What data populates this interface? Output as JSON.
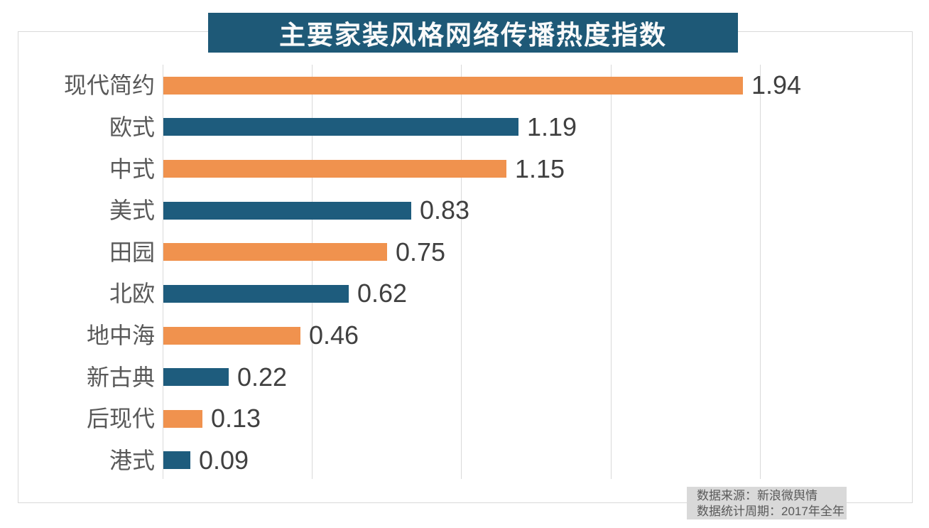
{
  "title": "主要家装风格网络传播热度指数",
  "source": {
    "line1": "数据来源：新浪微舆情",
    "line2": "数据统计周期：2017年全年"
  },
  "colors": {
    "title_bg": "#1E5977",
    "bar_orange": "#F0924E",
    "bar_teal": "#1E5C7D",
    "gridline": "#D9D9D9",
    "frame_border": "#D9D9D9",
    "category_label": "#595959",
    "value_label": "#404040",
    "source_bg": "#D9D9D9",
    "source_text": "#595959"
  },
  "chart_data": {
    "type": "bar",
    "orientation": "horizontal",
    "title": "主要家装风格网络传播热度指数",
    "categories": [
      "现代简约",
      "欧式",
      "中式",
      "美式",
      "田园",
      "北欧",
      "地中海",
      "新古典",
      "后现代",
      "港式"
    ],
    "values": [
      1.94,
      1.19,
      1.15,
      0.83,
      0.75,
      0.62,
      0.46,
      0.22,
      0.13,
      0.09
    ],
    "value_labels": [
      "1.94",
      "1.19",
      "1.15",
      "0.83",
      "0.75",
      "0.62",
      "0.46",
      "0.22",
      "0.13",
      "0.09"
    ],
    "bar_color_pattern": [
      "#F0924E",
      "#1E5C7D"
    ],
    "xlim": [
      0,
      2.5
    ],
    "gridline_values": [
      0,
      0.5,
      1.0,
      1.5,
      2.0
    ],
    "grid": true,
    "legend": false,
    "xlabel": "",
    "ylabel": "",
    "annotations": [
      "数据来源：新浪微舆情",
      "数据统计周期：2017年全年"
    ]
  }
}
